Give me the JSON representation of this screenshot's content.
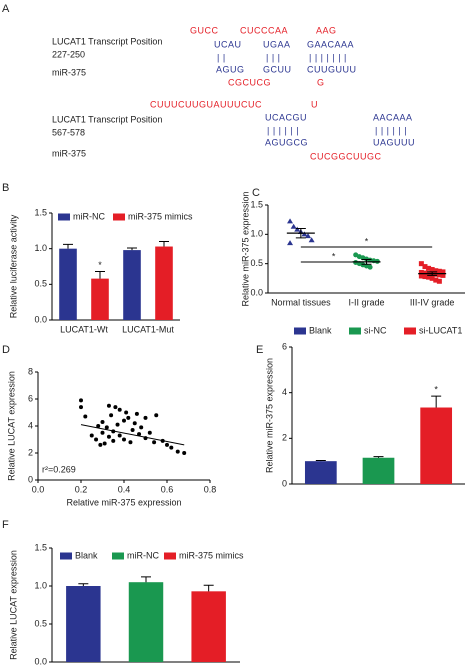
{
  "panel_labels": [
    "A",
    "B",
    "C",
    "D",
    "E",
    "F"
  ],
  "panel_a": {
    "site1": {
      "label": "LUCAT1 Transcript Position",
      "position": "227-250",
      "mirna": "miR-375",
      "top_loops": [
        "GUCC",
        "CUCCCAA",
        "AAG"
      ],
      "top_pairs": [
        "UCAU",
        "UGAA",
        "GAACAAA"
      ],
      "bonds": [
        "| |",
        "| | |",
        "| | | | | | |"
      ],
      "bottom_pairs": [
        "AGUG",
        "GCUU",
        "CUUGUUU"
      ],
      "bottom_loops": [
        "CGCUCG",
        "G"
      ]
    },
    "site2": {
      "label": "LUCAT1 Transcript Position",
      "position": "567-578",
      "mirna": "miR-375",
      "top_loops": [
        "CUUUCUUGUAUUUCUC",
        "U"
      ],
      "top_pairs": [
        "UCACGU",
        "AACAAA"
      ],
      "bonds": [
        "| | | | | |",
        "| | | | | |"
      ],
      "bottom_pairs": [
        "AGUGCG",
        "UAGUUU"
      ],
      "bottom_loops": [
        "CUCGGCUUGC"
      ]
    }
  },
  "chart_data": [
    {
      "type": "bar",
      "y_label": "Relative luciferase activity",
      "categories": [
        "LUCAT1-Wt",
        "LUCAT1-Mut"
      ],
      "series": [
        {
          "name": "miR-NC",
          "color": "#2b3590",
          "values": [
            1.0,
            0.98
          ],
          "errors": [
            0.06,
            0.03
          ]
        },
        {
          "name": "miR-375 mimics",
          "color": "#e41e26",
          "values": [
            0.58,
            1.03
          ],
          "errors": [
            0.1,
            0.07
          ]
        }
      ],
      "ylim": [
        0,
        1.5
      ],
      "yticks": [
        {
          "value": 0,
          "label": "0.0"
        },
        {
          "value": 0.5,
          "label": "0.5"
        },
        {
          "value": 1,
          "label": "1.0"
        },
        {
          "value": 1.5,
          "label": "1.5"
        }
      ],
      "annotations": [
        "*"
      ]
    },
    {
      "type": "dot",
      "y_label": "Relative miR-375 expression",
      "categories": [
        "Normal tissues",
        "I-II grade",
        "III-IV grade"
      ],
      "groups": [
        {
          "color": "#2b3590",
          "marker": "triangle",
          "mean": 1.02,
          "error": 0.08,
          "values": [
            1.22,
            1.13,
            1.08,
            1.04,
            1.0,
            0.97,
            0.9,
            0.85
          ]
        },
        {
          "color": "#1a9850",
          "marker": "circle",
          "mean": 0.53,
          "error": 0.04,
          "values": [
            0.65,
            0.62,
            0.6,
            0.58,
            0.56,
            0.55,
            0.54,
            0.52,
            0.5,
            0.48,
            0.46,
            0.44
          ]
        },
        {
          "color": "#e41e26",
          "marker": "square",
          "mean": 0.33,
          "error": 0.03,
          "values": [
            0.5,
            0.45,
            0.42,
            0.4,
            0.38,
            0.37,
            0.36,
            0.35,
            0.34,
            0.33,
            0.33,
            0.32,
            0.31,
            0.3,
            0.29,
            0.28,
            0.27,
            0.25,
            0.22,
            0.2
          ]
        }
      ],
      "ylim": [
        0,
        1.5
      ],
      "yticks": [
        {
          "value": 0,
          "label": "0.0"
        },
        {
          "value": 0.5,
          "label": "0.5"
        },
        {
          "value": 1,
          "label": "1.0"
        },
        {
          "value": 1.5,
          "label": "1.5"
        }
      ],
      "annotations": [
        "*",
        "*"
      ]
    },
    {
      "type": "scatter",
      "x_label": "Relative miR-375 expression",
      "y_label": "Relative LUCAT expression",
      "x": [
        0.2,
        0.2,
        0.22,
        0.25,
        0.27,
        0.28,
        0.29,
        0.3,
        0.3,
        0.31,
        0.32,
        0.33,
        0.33,
        0.34,
        0.35,
        0.35,
        0.36,
        0.37,
        0.38,
        0.38,
        0.4,
        0.4,
        0.41,
        0.42,
        0.43,
        0.44,
        0.45,
        0.46,
        0.47,
        0.48,
        0.5,
        0.5,
        0.52,
        0.54,
        0.55,
        0.58,
        0.6,
        0.62,
        0.65,
        0.68
      ],
      "y": [
        5.9,
        5.4,
        4.7,
        3.3,
        3.0,
        4.0,
        2.6,
        4.3,
        3.5,
        2.7,
        3.9,
        5.5,
        3.2,
        4.8,
        3.6,
        2.9,
        5.4,
        4.1,
        3.3,
        5.2,
        4.4,
        3.0,
        5.0,
        4.6,
        2.8,
        3.7,
        4.2,
        4.9,
        3.4,
        3.9,
        4.6,
        3.1,
        3.5,
        2.8,
        4.8,
        2.9,
        2.6,
        2.4,
        2.1,
        2.0
      ],
      "color": "#000000",
      "trend": {
        "x": [
          0.2,
          0.68
        ],
        "y": [
          4.1,
          2.6
        ]
      },
      "xlim": [
        0,
        0.8
      ],
      "xticks": [
        {
          "value": 0,
          "label": "0.0"
        },
        {
          "value": 0.2,
          "label": "0.2"
        },
        {
          "value": 0.4,
          "label": "0.4"
        },
        {
          "value": 0.6,
          "label": "0.6"
        },
        {
          "value": 0.8,
          "label": "0.8"
        }
      ],
      "ylim": [
        0,
        8
      ],
      "yticks": [
        0,
        2,
        4,
        6,
        8
      ],
      "annotations": [
        "r²=0.269"
      ]
    },
    {
      "type": "bar",
      "y_label": "Relative miR-375 expression",
      "categories": [
        null
      ],
      "series": [
        {
          "name": "Blank",
          "color": "#2b3590",
          "values": [
            1.0
          ],
          "errors": [
            0.03
          ]
        },
        {
          "name": "si-NC",
          "color": "#1a9850",
          "values": [
            1.15
          ],
          "errors": [
            0.05
          ]
        },
        {
          "name": "si-LUCAT1",
          "color": "#e41e26",
          "values": [
            3.35
          ],
          "errors": [
            0.5
          ]
        }
      ],
      "ylim": [
        0,
        6
      ],
      "yticks": [
        0,
        2,
        4,
        6
      ],
      "annotations": [
        "*"
      ]
    },
    {
      "type": "bar",
      "y_label": "Relative LUCAT expression",
      "categories": [
        null
      ],
      "series": [
        {
          "name": "Blank",
          "color": "#2b3590",
          "values": [
            1.0
          ],
          "errors": [
            0.03
          ]
        },
        {
          "name": "miR-NC",
          "color": "#1a9850",
          "values": [
            1.05
          ],
          "errors": [
            0.07
          ]
        },
        {
          "name": "miR-375 mimics",
          "color": "#e41e26",
          "values": [
            0.93
          ],
          "errors": [
            0.08
          ]
        }
      ],
      "ylim": [
        0,
        1.5
      ],
      "yticks": [
        {
          "value": 0,
          "label": "0.0"
        },
        {
          "value": 0.5,
          "label": "0.5"
        },
        {
          "value": 1,
          "label": "1.0"
        },
        {
          "value": 1.5,
          "label": "1.5"
        }
      ]
    }
  ]
}
